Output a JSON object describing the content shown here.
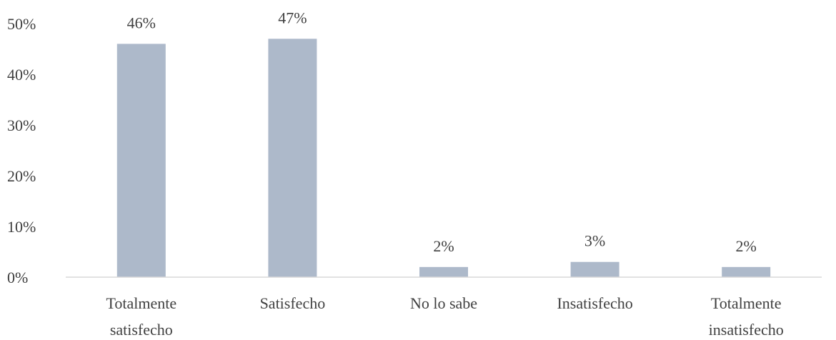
{
  "chart_data": {
    "type": "bar",
    "categories": [
      [
        "Totalmente",
        "satisfecho"
      ],
      [
        "Satisfecho"
      ],
      [
        "No lo sabe"
      ],
      [
        "Insatisfecho"
      ],
      [
        "Totalmente",
        "insatisfecho"
      ]
    ],
    "values": [
      46,
      47,
      2,
      3,
      2
    ],
    "data_labels": [
      "46%",
      "47%",
      "2%",
      "3%",
      "2%"
    ],
    "y_ticks": [
      0,
      10,
      20,
      30,
      40,
      50
    ],
    "y_tick_labels": [
      "0%",
      "10%",
      "20%",
      "30%",
      "40%",
      "50%"
    ],
    "ylim": [
      0,
      50
    ],
    "grid": false,
    "legend": "none",
    "colors": {
      "bar": "#adb9ca",
      "axis": "#d9d9d9",
      "text": "#404040"
    }
  }
}
